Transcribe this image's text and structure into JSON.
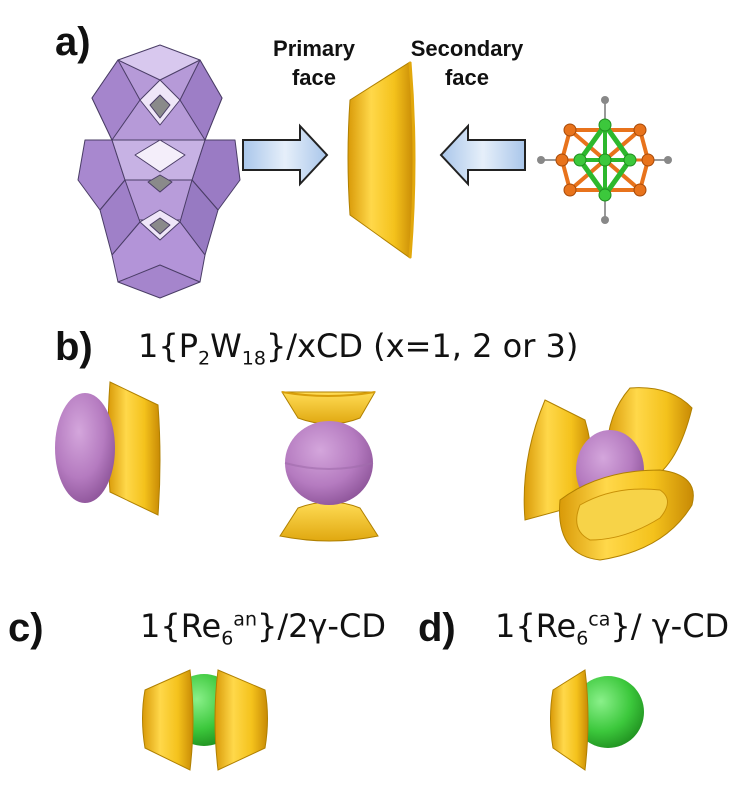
{
  "panels": {
    "a": {
      "label": "a)",
      "primary_face": "Primary\nface",
      "secondary_face": "Secondary\nface"
    },
    "b": {
      "label": "b)",
      "f_prefix": "1{P",
      "f_sub1": "2",
      "f_w": "W",
      "f_sub2": "18",
      "f_suffix": "}/xCD (x=1, 2 or 3)"
    },
    "c": {
      "label": "c)",
      "f_prefix": "1{Re",
      "f_sub": "6",
      "f_sup": "an",
      "f_suffix": "}/2γ-CD"
    },
    "d": {
      "label": "d)",
      "f_prefix": "1{Re",
      "f_sub": "6",
      "f_sup": "ca",
      "f_suffix": "}/ γ-CD"
    }
  },
  "colors": {
    "cyclodextrin_gold": "#f4c21c",
    "polyoxometalate_purple": "#b57bc0",
    "polyhedra_lilac": "#b69ad8",
    "cluster_orange": "#e8731c",
    "cluster_green": "#3cc83c",
    "arrow_blue": "#bcd4ee"
  },
  "icons": [
    "polyoxometalate-polyhedra-icon",
    "arrow-right-icon",
    "cyclodextrin-cone-icon",
    "arrow-left-icon",
    "rhenium-cluster-icon"
  ]
}
